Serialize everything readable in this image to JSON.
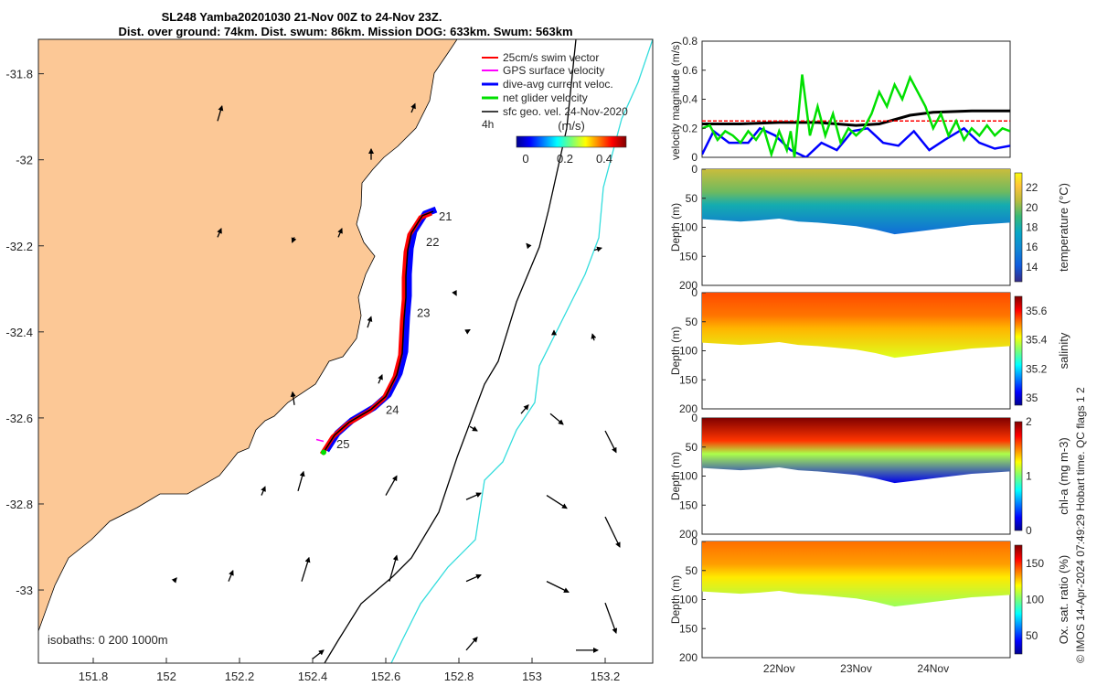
{
  "title": {
    "line1": "SL248 Yamba20201030 21-Nov 00Z to 24-Nov 23Z.",
    "line2": "Dist. over ground: 74km. Dist. swum: 86km. Mission DOG: 633km. Swum: 563km"
  },
  "colors": {
    "land": "#fcc896",
    "swim_vector": "#ff0000",
    "gps_velocity": "#ff00ff",
    "dive_avg_current": "#0000ff",
    "net_glider": "#00e000",
    "sfc_geo": "#000000",
    "isobath_200": "#000000",
    "isobath_1000": "#33dddd"
  },
  "chart_data": [
    {
      "id": "map",
      "type": "scatter",
      "xticks": [
        "151.8",
        "152",
        "152.2",
        "152.4",
        "152.6",
        "152.8",
        "153",
        "153.2"
      ],
      "yticks": [
        "-31.8",
        "-32",
        "-32.2",
        "-32.4",
        "-32.6",
        "-32.8",
        "-33"
      ],
      "xlim": [
        151.65,
        153.33
      ],
      "ylim": [
        -33.17,
        -31.72
      ],
      "legend": [
        {
          "label": "25cm/s swim vector",
          "color": "#ff0000"
        },
        {
          "label": "GPS surface velocity",
          "color": "#ff00ff"
        },
        {
          "label": "dive-avg current veloc.",
          "color": "#0000ff"
        },
        {
          "label": "net glider velocity",
          "color": "#00e000"
        },
        {
          "label": "sfc geo. vel. 24-Nov-2020",
          "color": "#000000"
        }
      ],
      "legend_extra": "4h",
      "colorbar": {
        "label": "(m/s)",
        "ticks": [
          "0",
          "0.2",
          "0.4"
        ],
        "range": [
          0,
          0.5
        ]
      },
      "day_labels": [
        {
          "text": "21",
          "lon": 152.745,
          "lat": -32.13
        },
        {
          "text": "22",
          "lon": 152.71,
          "lat": -32.19
        },
        {
          "text": "23",
          "lon": 152.685,
          "lat": -32.355
        },
        {
          "text": "24",
          "lon": 152.6,
          "lat": -32.58
        },
        {
          "text": "25",
          "lon": 152.465,
          "lat": -32.66
        }
      ],
      "track": [
        [
          152.73,
          -32.12
        ],
        [
          152.7,
          -32.13
        ],
        [
          152.67,
          -32.17
        ],
        [
          152.66,
          -32.21
        ],
        [
          152.655,
          -32.27
        ],
        [
          152.655,
          -32.32
        ],
        [
          152.65,
          -32.37
        ],
        [
          152.645,
          -32.45
        ],
        [
          152.63,
          -32.5
        ],
        [
          152.6,
          -32.55
        ],
        [
          152.56,
          -32.58
        ],
        [
          152.5,
          -32.61
        ],
        [
          152.46,
          -32.64
        ],
        [
          152.43,
          -32.68
        ]
      ],
      "isobaths_note": "isobaths: 0   200  1000m",
      "geo_vectors": [
        [
          152.14,
          -31.91,
          0.012,
          0.035
        ],
        [
          152.67,
          -31.89,
          0.01,
          0.02
        ],
        [
          152.56,
          -32.0,
          0.0,
          0.025
        ],
        [
          152.14,
          -32.18,
          0.01,
          0.02
        ],
        [
          152.35,
          -32.18,
          -0.006,
          -0.012
        ],
        [
          152.47,
          -32.18,
          0.01,
          0.02
        ],
        [
          152.99,
          -32.2,
          -0.005,
          0.005
        ],
        [
          153.17,
          -32.21,
          0.02,
          0.005
        ],
        [
          152.79,
          -32.31,
          0.003,
          -0.005
        ],
        [
          152.55,
          -32.39,
          0.01,
          0.025
        ],
        [
          152.82,
          -32.4,
          0.01,
          0.005
        ],
        [
          153.06,
          -32.4,
          0.0,
          0.003
        ],
        [
          153.17,
          -32.42,
          -0.005,
          0.015
        ],
        [
          152.58,
          -32.52,
          0.01,
          0.02
        ],
        [
          152.35,
          -32.57,
          -0.005,
          0.03
        ],
        [
          152.97,
          -32.59,
          0.02,
          0.02
        ],
        [
          153.05,
          -32.59,
          0.035,
          -0.025
        ],
        [
          153.2,
          -32.63,
          0.03,
          -0.05
        ],
        [
          152.83,
          -32.62,
          0.02,
          -0.01
        ],
        [
          152.26,
          -32.78,
          0.01,
          0.02
        ],
        [
          152.36,
          -32.77,
          0.015,
          0.045
        ],
        [
          152.6,
          -32.78,
          0.03,
          0.045
        ],
        [
          152.82,
          -32.79,
          0.04,
          0.015
        ],
        [
          153.04,
          -32.78,
          0.055,
          -0.03
        ],
        [
          153.2,
          -32.83,
          0.04,
          -0.07
        ],
        [
          152.02,
          -32.98,
          0.008,
          0.008
        ],
        [
          152.17,
          -32.98,
          0.012,
          0.025
        ],
        [
          152.37,
          -32.98,
          0.02,
          0.055
        ],
        [
          152.61,
          -32.98,
          0.02,
          0.06
        ],
        [
          152.82,
          -32.98,
          0.04,
          0.015
        ],
        [
          153.04,
          -32.98,
          0.06,
          -0.025
        ],
        [
          153.2,
          -33.03,
          0.03,
          -0.07
        ],
        [
          152.4,
          -33.16,
          0.03,
          0.02
        ],
        [
          152.82,
          -33.14,
          0.03,
          0.03
        ],
        [
          153.12,
          -33.14,
          0.06,
          0.0
        ]
      ]
    },
    {
      "id": "velocity",
      "type": "line",
      "ylabel": "velocity magnitude (m/s)",
      "ylim": [
        0,
        0.8
      ],
      "yticks": [
        "0",
        "0.2",
        "0.4",
        "0.6",
        "0.8"
      ],
      "xlim_days": [
        0,
        4
      ],
      "series": [
        {
          "color": "#000000",
          "values": [
            [
              0,
              0.23
            ],
            [
              0.5,
              0.23
            ],
            [
              1,
              0.24
            ],
            [
              1.5,
              0.24
            ],
            [
              2,
              0.22
            ],
            [
              2.3,
              0.23
            ],
            [
              2.7,
              0.29
            ],
            [
              3,
              0.31
            ],
            [
              3.5,
              0.32
            ],
            [
              4,
              0.32
            ]
          ]
        },
        {
          "color": "#ff0000",
          "values": [
            [
              0,
              0.25
            ],
            [
              4,
              0.25
            ]
          ]
        },
        {
          "color": "#0000ff",
          "values": [
            [
              0,
              0.02
            ],
            [
              0.15,
              0.18
            ],
            [
              0.35,
              0.1
            ],
            [
              0.6,
              0.1
            ],
            [
              0.75,
              0.2
            ],
            [
              0.95,
              0.15
            ],
            [
              1.15,
              0.05
            ],
            [
              1.35,
              0.0
            ],
            [
              1.55,
              0.1
            ],
            [
              1.75,
              0.05
            ],
            [
              1.95,
              0.18
            ],
            [
              2.15,
              0.2
            ],
            [
              2.35,
              0.1
            ],
            [
              2.55,
              0.08
            ],
            [
              2.75,
              0.18
            ],
            [
              2.95,
              0.05
            ],
            [
              3.15,
              0.12
            ],
            [
              3.4,
              0.2
            ],
            [
              3.6,
              0.1
            ],
            [
              3.8,
              0.06
            ],
            [
              4.0,
              0.08
            ]
          ]
        },
        {
          "color": "#00e000",
          "values": [
            [
              0,
              0.2
            ],
            [
              0.1,
              0.22
            ],
            [
              0.2,
              0.12
            ],
            [
              0.3,
              0.18
            ],
            [
              0.4,
              0.15
            ],
            [
              0.5,
              0.1
            ],
            [
              0.6,
              0.18
            ],
            [
              0.7,
              0.12
            ],
            [
              0.8,
              0.2
            ],
            [
              0.9,
              0.02
            ],
            [
              1.0,
              0.18
            ],
            [
              1.1,
              0.05
            ],
            [
              1.15,
              0.18
            ],
            [
              1.2,
              0.0
            ],
            [
              1.3,
              0.57
            ],
            [
              1.4,
              0.15
            ],
            [
              1.5,
              0.35
            ],
            [
              1.6,
              0.15
            ],
            [
              1.7,
              0.3
            ],
            [
              1.8,
              0.1
            ],
            [
              1.9,
              0.2
            ],
            [
              2.0,
              0.15
            ],
            [
              2.1,
              0.2
            ],
            [
              2.2,
              0.3
            ],
            [
              2.3,
              0.45
            ],
            [
              2.4,
              0.35
            ],
            [
              2.5,
              0.5
            ],
            [
              2.6,
              0.4
            ],
            [
              2.7,
              0.55
            ],
            [
              2.8,
              0.45
            ],
            [
              2.9,
              0.35
            ],
            [
              3.0,
              0.2
            ],
            [
              3.1,
              0.3
            ],
            [
              3.2,
              0.15
            ],
            [
              3.3,
              0.25
            ],
            [
              3.4,
              0.12
            ],
            [
              3.5,
              0.2
            ],
            [
              3.6,
              0.15
            ],
            [
              3.7,
              0.22
            ],
            [
              3.8,
              0.15
            ],
            [
              3.9,
              0.2
            ],
            [
              4.0,
              0.18
            ]
          ]
        }
      ]
    },
    {
      "id": "temperature",
      "type": "heatmap",
      "ylabel": "Depth (m)",
      "cblabel": "temperature (°C)",
      "yticks": [
        "0",
        "50",
        "100",
        "150",
        "200"
      ],
      "cbticks": [
        "22",
        "20",
        "18",
        "16",
        "14"
      ],
      "clim": [
        12.5,
        23.5
      ],
      "top_value": 21.0,
      "deep_value": 14.8,
      "max_depth": [
        86,
        88,
        90,
        88,
        85,
        90,
        92,
        95,
        98,
        104,
        112,
        108,
        104,
        100,
        96,
        94,
        92
      ]
    },
    {
      "id": "salinity",
      "type": "heatmap",
      "ylabel": "Depth (m)",
      "cblabel": "salinity",
      "yticks": [
        "0",
        "50",
        "100",
        "150",
        "200"
      ],
      "cbticks": [
        "35.6",
        "35.4",
        "35.2",
        "35"
      ],
      "clim": [
        34.95,
        35.7
      ],
      "top_value": 35.55,
      "deep_value": 35.4,
      "max_depth": [
        86,
        88,
        90,
        88,
        85,
        90,
        92,
        95,
        98,
        104,
        112,
        108,
        104,
        100,
        96,
        94,
        92
      ]
    },
    {
      "id": "chla",
      "type": "heatmap",
      "ylabel": "Depth (m)",
      "cblabel": "chl-a (mg m-3)",
      "yticks": [
        "0",
        "50",
        "100",
        "150",
        "200"
      ],
      "cbticks": [
        "2",
        "1",
        "0"
      ],
      "clim": [
        0,
        2
      ],
      "top_value": 2.0,
      "deep_value": 0.2,
      "max_depth": [
        86,
        88,
        90,
        88,
        85,
        90,
        92,
        95,
        98,
        104,
        112,
        108,
        104,
        100,
        96,
        94,
        92
      ]
    },
    {
      "id": "oxygen",
      "type": "heatmap",
      "ylabel": "Depth (m)",
      "cblabel": "Ox. sat. ratio (%)",
      "yticks": [
        "0",
        "50",
        "100",
        "150",
        "200"
      ],
      "cbticks": [
        "150",
        "100",
        "50"
      ],
      "clim": [
        25,
        175
      ],
      "top_value": 140,
      "deep_value": 105,
      "max_depth": [
        86,
        88,
        90,
        88,
        85,
        90,
        92,
        95,
        98,
        104,
        112,
        108,
        104,
        100,
        96,
        94,
        92
      ],
      "xticks": [
        "22Nov",
        "23Nov",
        "24Nov"
      ]
    }
  ],
  "footer_note": "© IMOS 14-Apr-2024 07:49:29 Hobart time. QC flags 1  2"
}
